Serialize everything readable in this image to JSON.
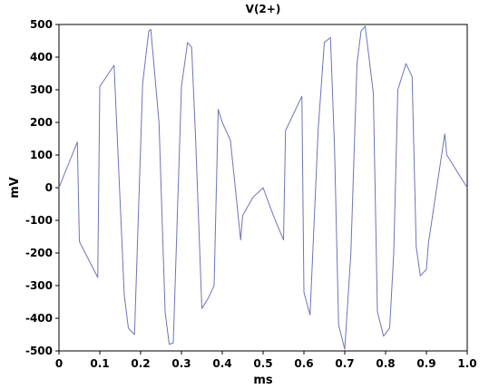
{
  "chart_data": {
    "type": "line",
    "title": "V(2+)",
    "xlabel": "ms",
    "ylabel": "mV",
    "xlim": [
      0,
      1.0
    ],
    "ylim": [
      -500,
      500
    ],
    "x_ticks": [
      "0",
      "0.1",
      "0.2",
      "0.3",
      "0.4",
      "0.5",
      "0.6",
      "0.7",
      "0.8",
      "0.9",
      "1.0"
    ],
    "x_tick_values": [
      0,
      0.1,
      0.2,
      0.3,
      0.4,
      0.5,
      0.6,
      0.7,
      0.8,
      0.9,
      1.0
    ],
    "y_ticks": [
      "500",
      "400",
      "300",
      "200",
      "100",
      "0",
      "-100",
      "-200",
      "-300",
      "-400",
      "-500"
    ],
    "y_tick_values": [
      500,
      400,
      300,
      200,
      100,
      0,
      -100,
      -200,
      -300,
      -400,
      -500
    ],
    "grid": false,
    "line_color": "#6e74b8",
    "series": [
      {
        "x": [
          0,
          0.045,
          0.05,
          0.095,
          0.1,
          0.135,
          0.16,
          0.17,
          0.185,
          0.205,
          0.22,
          0.225,
          0.245,
          0.26,
          0.27,
          0.28,
          0.3,
          0.315,
          0.325,
          0.335,
          0.35,
          0.365,
          0.38,
          0.39,
          0.4,
          0.42,
          0.445,
          0.45,
          0.475,
          0.5,
          0.525,
          0.55,
          0.555,
          0.595,
          0.6,
          0.615,
          0.635,
          0.65,
          0.665,
          0.675,
          0.685,
          0.7,
          0.715,
          0.73,
          0.74,
          0.75,
          0.77,
          0.78,
          0.795,
          0.81,
          0.82,
          0.83,
          0.85,
          0.865,
          0.875,
          0.885,
          0.9,
          0.905,
          0.945,
          0.95,
          1.0
        ],
        "y": [
          0,
          140,
          -165,
          -275,
          310,
          375,
          -330,
          -430,
          -450,
          320,
          480,
          485,
          200,
          -380,
          -480,
          -475,
          310,
          445,
          430,
          140,
          -370,
          -340,
          -300,
          240,
          200,
          145,
          -160,
          -85,
          -30,
          0,
          -85,
          -160,
          175,
          280,
          -320,
          -390,
          180,
          445,
          460,
          120,
          -420,
          -495,
          -200,
          380,
          480,
          495,
          290,
          -380,
          -455,
          -430,
          -200,
          300,
          380,
          340,
          -180,
          -270,
          -250,
          -170,
          165,
          100,
          0
        ]
      }
    ]
  }
}
